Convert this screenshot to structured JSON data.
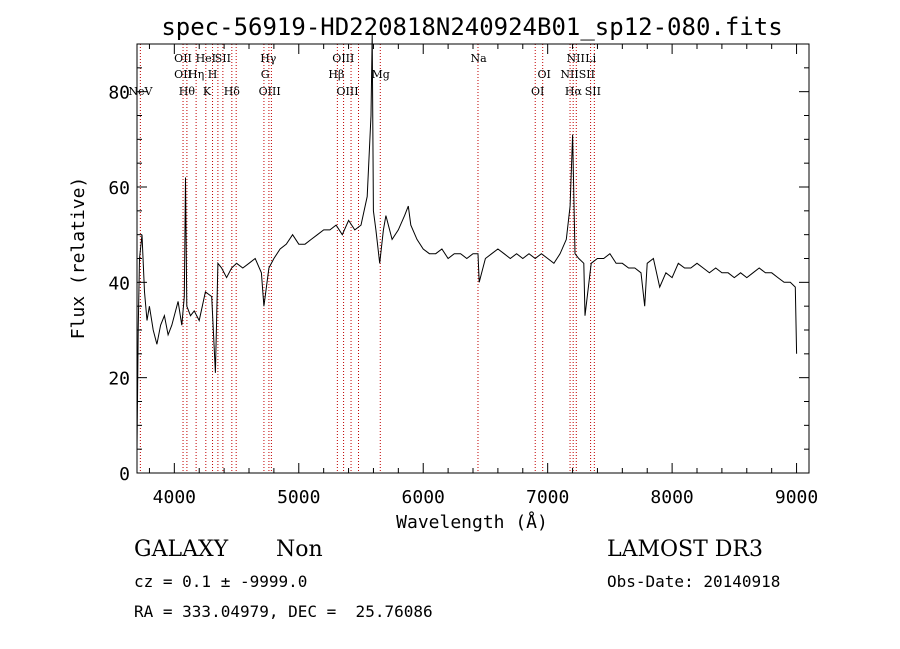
{
  "chart_data": {
    "type": "line",
    "title": "spec-56919-HD220818N240924B01_sp12-080.fits",
    "xlabel": "Wavelength (Å)",
    "ylabel": "Flux (relative)",
    "xlim": [
      3700,
      9100
    ],
    "ylim": [
      0,
      90
    ],
    "xticks": [
      4000,
      5000,
      6000,
      7000,
      8000,
      9000
    ],
    "yticks": [
      0,
      20,
      40,
      60,
      80
    ],
    "grid": false,
    "series": [
      {
        "x": [
          3700,
          3710,
          3720,
          3740,
          3760,
          3780,
          3800,
          3830,
          3860,
          3890,
          3920,
          3950,
          3980,
          4000,
          4030,
          4060,
          4080,
          4090,
          4100,
          4130,
          4160,
          4200,
          4250,
          4300,
          4330,
          4340,
          4350,
          4380,
          4420,
          4460,
          4500,
          4550,
          4600,
          4650,
          4700,
          4720,
          4760,
          4800,
          4850,
          4900,
          4950,
          5000,
          5050,
          5100,
          5150,
          5200,
          5250,
          5300,
          5350,
          5400,
          5450,
          5500,
          5550,
          5580,
          5590,
          5600,
          5620,
          5650,
          5680,
          5700,
          5750,
          5800,
          5850,
          5880,
          5900,
          5950,
          6000,
          6050,
          6100,
          6150,
          6200,
          6250,
          6300,
          6350,
          6400,
          6440,
          6450,
          6500,
          6550,
          6600,
          6650,
          6700,
          6750,
          6800,
          6850,
          6900,
          6950,
          7000,
          7050,
          7100,
          7150,
          7180,
          7200,
          7220,
          7250,
          7290,
          7300,
          7350,
          7400,
          7450,
          7500,
          7550,
          7600,
          7650,
          7700,
          7750,
          7780,
          7800,
          7850,
          7900,
          7950,
          8000,
          8050,
          8100,
          8150,
          8200,
          8250,
          8300,
          8350,
          8400,
          8450,
          8500,
          8550,
          8600,
          8650,
          8700,
          8750,
          8800,
          8850,
          8900,
          8950,
          8990,
          9000
        ],
        "y": [
          5,
          30,
          45,
          50,
          38,
          32,
          35,
          30,
          27,
          31,
          33,
          29,
          31,
          33,
          36,
          31,
          37,
          62,
          35,
          33,
          34,
          32,
          38,
          37,
          21,
          32,
          44,
          43,
          41,
          43,
          44,
          43,
          44,
          45,
          42,
          35,
          43,
          45,
          47,
          48,
          50,
          48,
          48,
          49,
          50,
          51,
          51,
          52,
          50,
          53,
          51,
          52,
          58,
          75,
          92,
          55,
          51,
          44,
          51,
          54,
          49,
          51,
          54,
          56,
          52,
          49,
          47,
          46,
          46,
          47,
          45,
          46,
          46,
          45,
          46,
          46,
          40,
          45,
          46,
          47,
          46,
          45,
          46,
          45,
          46,
          45,
          46,
          45,
          44,
          46,
          49,
          56,
          71,
          46,
          45,
          44,
          33,
          44,
          45,
          45,
          46,
          44,
          44,
          43,
          43,
          42,
          35,
          44,
          45,
          39,
          42,
          41,
          44,
          43,
          43,
          44,
          43,
          42,
          43,
          42,
          42,
          41,
          42,
          41,
          42,
          43,
          42,
          42,
          41,
          40,
          40,
          39,
          25
        ]
      }
    ],
    "line_labels": [
      {
        "x": 3727,
        "label": "NeV",
        "row": 3
      },
      {
        "x": 4070,
        "label": "OII",
        "row": 1
      },
      {
        "x": 4070,
        "label": "OII",
        "row": 2
      },
      {
        "x": 4101,
        "label": "Hθ",
        "row": 3
      },
      {
        "x": 4175,
        "label": "Hη",
        "row": 2
      },
      {
        "x": 4253,
        "label": "HeI",
        "row": 1
      },
      {
        "x": 4262,
        "label": "K",
        "row": 3
      },
      {
        "x": 4307,
        "label": "H",
        "row": 2
      },
      {
        "x": 4390,
        "label": "SII",
        "row": 1
      },
      {
        "x": 4462,
        "label": "Hδ",
        "row": 3
      },
      {
        "x": 4755,
        "label": "Hγ",
        "row": 1
      },
      {
        "x": 4730,
        "label": "G",
        "row": 2
      },
      {
        "x": 4766,
        "label": "OIII",
        "row": 3
      },
      {
        "x": 5358,
        "label": "OIII",
        "row": 1
      },
      {
        "x": 5302,
        "label": "Hβ",
        "row": 2
      },
      {
        "x": 5392,
        "label": "OIII",
        "row": 3
      },
      {
        "x": 5658,
        "label": "Mg",
        "row": 2
      },
      {
        "x": 6445,
        "label": "Na",
        "row": 1
      },
      {
        "x": 6972,
        "label": "OI",
        "row": 2
      },
      {
        "x": 6920,
        "label": "OI",
        "row": 3
      },
      {
        "x": 7225,
        "label": "NII",
        "row": 1
      },
      {
        "x": 7241,
        "label": "NIISII",
        "row": 2
      },
      {
        "x": 7207,
        "label": "Hα",
        "row": 3
      },
      {
        "x": 7346,
        "label": "Li",
        "row": 1
      },
      {
        "x": 7363,
        "label": "SII",
        "row": 3
      }
    ],
    "marker_lines": [
      3727,
      4070,
      4101,
      4175,
      4253,
      4307,
      4350,
      4390,
      4462,
      4497,
      4720,
      4760,
      4780,
      5310,
      5360,
      5420,
      5480,
      5655,
      6440,
      6900,
      6960,
      7180,
      7205,
      7230,
      7345,
      7375
    ]
  },
  "footer": {
    "object_class": "GALAXY",
    "object_subclass": "Non",
    "cz_line": "cz = 0.1 ± -9999.0",
    "radec_line": "RA = 333.04979, DEC =  25.76086",
    "survey": "LAMOST DR3",
    "obs_date": "Obs-Date: 20140918"
  }
}
